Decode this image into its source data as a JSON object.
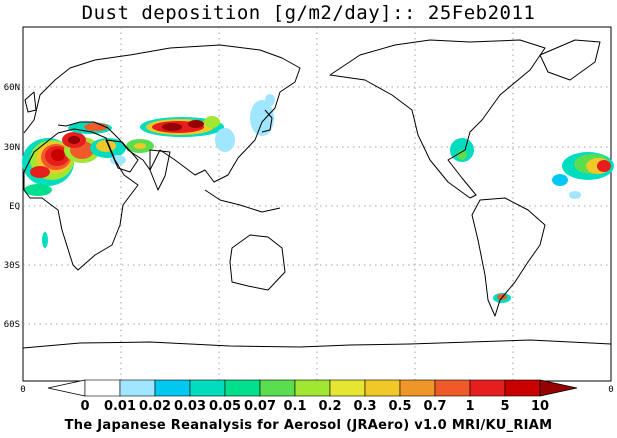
{
  "title": "Dust deposition [g/m2/day]:: 25Feb2011",
  "credit": "The Japanese Reanalysis for Aerosol (JRAero) v1.0 MRI/KU_RIAM",
  "latitude_labels": [
    "60N",
    "30N",
    "EQ",
    "30S",
    "60S"
  ],
  "edge_labels": {
    "colorbar_left": "0",
    "colorbar_right": "0"
  },
  "colorbar": {
    "labels": [
      "0",
      "0.01",
      "0.02",
      "0.03",
      "0.05",
      "0.07",
      "0.1",
      "0.2",
      "0.3",
      "0.5",
      "0.7",
      "1",
      "5",
      "10"
    ],
    "colors": [
      "#ffffff",
      "#a0e6ff",
      "#00c8f0",
      "#00dcbe",
      "#00e08c",
      "#5ade50",
      "#a0e632",
      "#e6e632",
      "#f0c828",
      "#f09628",
      "#f05a28",
      "#e61e1e",
      "#c80000",
      "#960000",
      "#8c0000"
    ]
  },
  "map": {
    "projection": "cylindrical equidistant, centered on 180",
    "dust_plumes": [
      {
        "region": "Sahara / North Africa",
        "max_level": "10"
      },
      {
        "region": "Arabian Peninsula",
        "max_level": "5"
      },
      {
        "region": "Taklimakan / Gobi",
        "max_level": "10"
      },
      {
        "region": "Western North Atlantic",
        "max_level": "5"
      },
      {
        "region": "Patagonia",
        "max_level": "0.5"
      }
    ]
  }
}
